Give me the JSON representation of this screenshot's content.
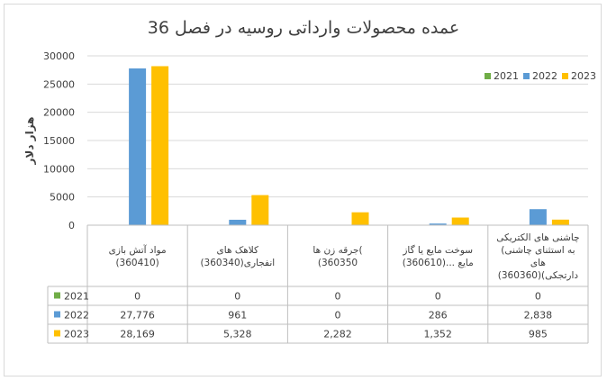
{
  "chart_data": {
    "type": "bar",
    "title": "عمده محصولات وارداتی روسیه در فصل 36",
    "ylabel": "هزار دلار",
    "xlabel": "",
    "ylim": [
      0,
      30000
    ],
    "yticks": [
      "0",
      "5000",
      "10000",
      "15000",
      "20000",
      "25000",
      "30000"
    ],
    "ytick_values": [
      0,
      5000,
      10000,
      15000,
      20000,
      25000,
      30000
    ],
    "grid": true,
    "legend_position": "top-right",
    "categories": [
      [
        "مواد آتش بازی",
        "(360410)"
      ],
      [
        "کلاهک های",
        "انفجاری(360340)"
      ],
      [
        "جرقه زن ها(",
        "(360350"
      ],
      [
        "سوخت مایع یا گاز",
        "مایع ...(360610)"
      ],
      [
        "چاشنی های الکتریکی",
        "(به استثنای چاشنی",
        "های",
        "دارتجکی)(360360)"
      ]
    ],
    "series": [
      {
        "name": "2021",
        "color": "#70ad47",
        "values": [
          0,
          0,
          0,
          0,
          0
        ],
        "labels": [
          "0",
          "0",
          "0",
          "0",
          "0"
        ]
      },
      {
        "name": "2022",
        "color": "#5b9bd5",
        "values": [
          27776,
          961,
          0,
          286,
          2838
        ],
        "labels": [
          "27,776",
          "961",
          "0",
          "286",
          "2,838"
        ]
      },
      {
        "name": "2023",
        "color": "#ffc000",
        "values": [
          28169,
          5328,
          2282,
          1352,
          985
        ],
        "labels": [
          "28,169",
          "5,328",
          "2,282",
          "1,352",
          "985"
        ]
      }
    ]
  }
}
